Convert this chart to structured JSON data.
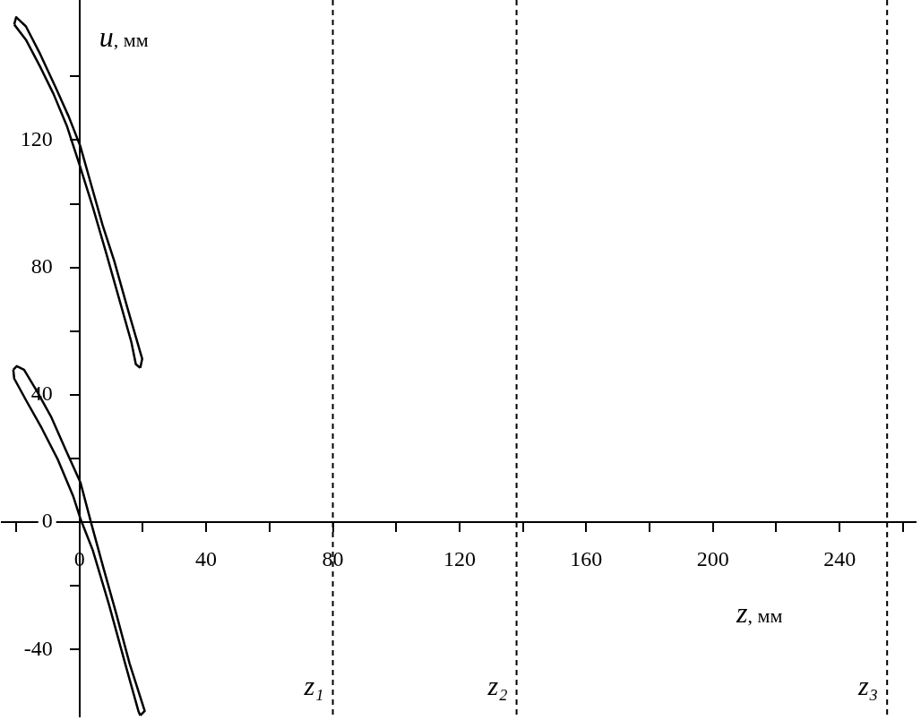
{
  "chart_data": {
    "type": "line",
    "xlabel": "z, мм",
    "ylabel": "u, мм",
    "xlim": [
      -24.5,
      264
    ],
    "ylim": [
      -61,
      164
    ],
    "xticks": [
      {
        "value": -20,
        "label": null
      },
      0,
      {
        "value": 20,
        "label": null
      },
      40,
      {
        "value": 60,
        "label": null
      },
      80,
      {
        "value": 100,
        "label": null
      },
      120,
      {
        "value": 140,
        "label": null
      },
      160,
      {
        "value": 180,
        "label": null
      },
      200,
      {
        "value": 220,
        "label": null
      },
      240,
      {
        "value": 260,
        "label": null
      }
    ],
    "yticks": [
      -40,
      {
        "value": -20,
        "label": null
      },
      0,
      {
        "value": 20,
        "label": null
      },
      40,
      {
        "value": 60,
        "label": null
      },
      80,
      {
        "value": 100,
        "label": null
      },
      120,
      {
        "value": 140,
        "label": null
      }
    ],
    "grid": false,
    "legend": false,
    "marker": "none",
    "line_style": "solid",
    "series": [
      {
        "color": "#000000",
        "x": [
          -20.6,
          -20,
          -16.9,
          -12.4,
          -7.6,
          -3.4,
          0.3,
          3.7,
          7.3,
          11,
          15,
          19.8,
          19.2
        ],
        "values": [
          156.3,
          158.6,
          155.7,
          147,
          136.7,
          127.4,
          118,
          106,
          93.3,
          82,
          67.8,
          51.3,
          48.5
        ]
      },
      {
        "color": "#000000",
        "x": [
          -20.6,
          -16.9,
          -12.4,
          -8.2,
          -4,
          0,
          4.2,
          8.5,
          12.4,
          16.4,
          17.8,
          19.2
        ],
        "values": [
          156.3,
          151.5,
          143,
          134.5,
          124.5,
          112.3,
          99,
          84.3,
          70.6,
          56.5,
          49.6,
          48.5
        ]
      },
      {
        "color": "#000000",
        "x": [
          -20.9,
          -19.8,
          -17.5,
          -13.3,
          -9,
          -4.2,
          0.3,
          3.7,
          7.6,
          11.6,
          15.8,
          20.6,
          19.2
        ],
        "values": [
          47.9,
          49,
          47.9,
          40.9,
          33.2,
          22.4,
          12.5,
          -0.3,
          -14.5,
          -28.7,
          -44.3,
          -59.3,
          -60.7
        ]
      },
      {
        "color": "#000000",
        "x": [
          -20.9,
          -20.6,
          -16.7,
          -11.9,
          -6.8,
          -2,
          0.3,
          4.2,
          9.3,
          14.4,
          18.6,
          19.2
        ],
        "values": [
          47.9,
          45.1,
          38,
          29.5,
          19.6,
          8.2,
          1.1,
          -8.8,
          -25.8,
          -44.3,
          -59.3,
          -60.7
        ]
      }
    ],
    "ref_lines": [
      {
        "axis": "x",
        "value": 80,
        "label": "z₁",
        "color": "#000000",
        "line_style": "dashed"
      },
      {
        "axis": "x",
        "value": 138,
        "label": "z₂",
        "color": "#000000",
        "line_style": "dashed"
      },
      {
        "axis": "x",
        "value": 255,
        "label": "z₃",
        "color": "#000000",
        "line_style": "dashed"
      }
    ]
  }
}
